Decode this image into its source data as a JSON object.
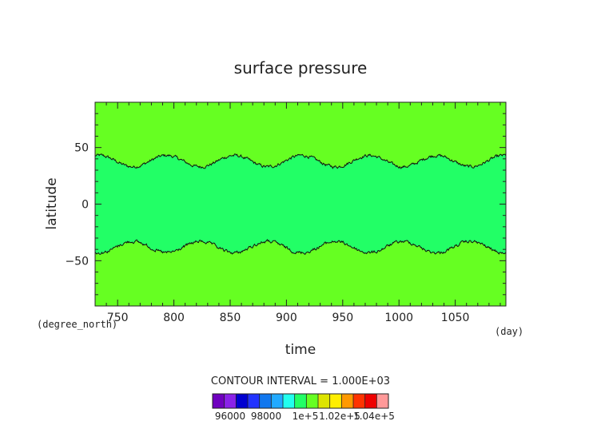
{
  "chart_data": {
    "type": "heatmap",
    "title": "surface pressure",
    "xlabel": "time",
    "ylabel": "latitude",
    "x_unit": "(day)",
    "y_unit": "(degree_north)",
    "xlim": [
      730,
      1095
    ],
    "ylim": [
      -90,
      90
    ],
    "x_ticks": [
      750,
      800,
      850,
      900,
      950,
      1000,
      1050
    ],
    "y_ticks": [
      50,
      0,
      -50
    ],
    "x_tick_labels": [
      "750",
      "800",
      "850",
      "900",
      "950",
      "1000",
      "1050"
    ],
    "y_tick_labels": [
      "50",
      "0",
      "−50"
    ],
    "contour_interval_text": "CONTOUR INTERVAL = 1.000E+03",
    "fill_levels": {
      "outer_band": {
        "range": [
          100000,
          101000
        ],
        "color": "#66ff22"
      },
      "inner_band": {
        "range": [
          101000,
          102000
        ],
        "color": "#22ff66"
      }
    },
    "contour_lines": [
      {
        "level": 101000,
        "lat_mean": 38,
        "lat_amplitude": 5,
        "period_days": 60
      },
      {
        "level": 101000,
        "lat_mean": -38,
        "lat_amplitude": 5,
        "period_days": 60
      }
    ],
    "colorbar": {
      "colors": [
        "#6f00bf",
        "#8a22e8",
        "#0000d0",
        "#2233ff",
        "#1177ee",
        "#22aaff",
        "#22ffee",
        "#22ff66",
        "#66ff22",
        "#dde400",
        "#ffee00",
        "#ff9900",
        "#ff3300",
        "#ee0000",
        "#ff9999"
      ],
      "tick_labels": [
        "96000",
        "98000",
        "1e+5",
        "1.02e+5",
        "1.04e+5"
      ]
    }
  }
}
